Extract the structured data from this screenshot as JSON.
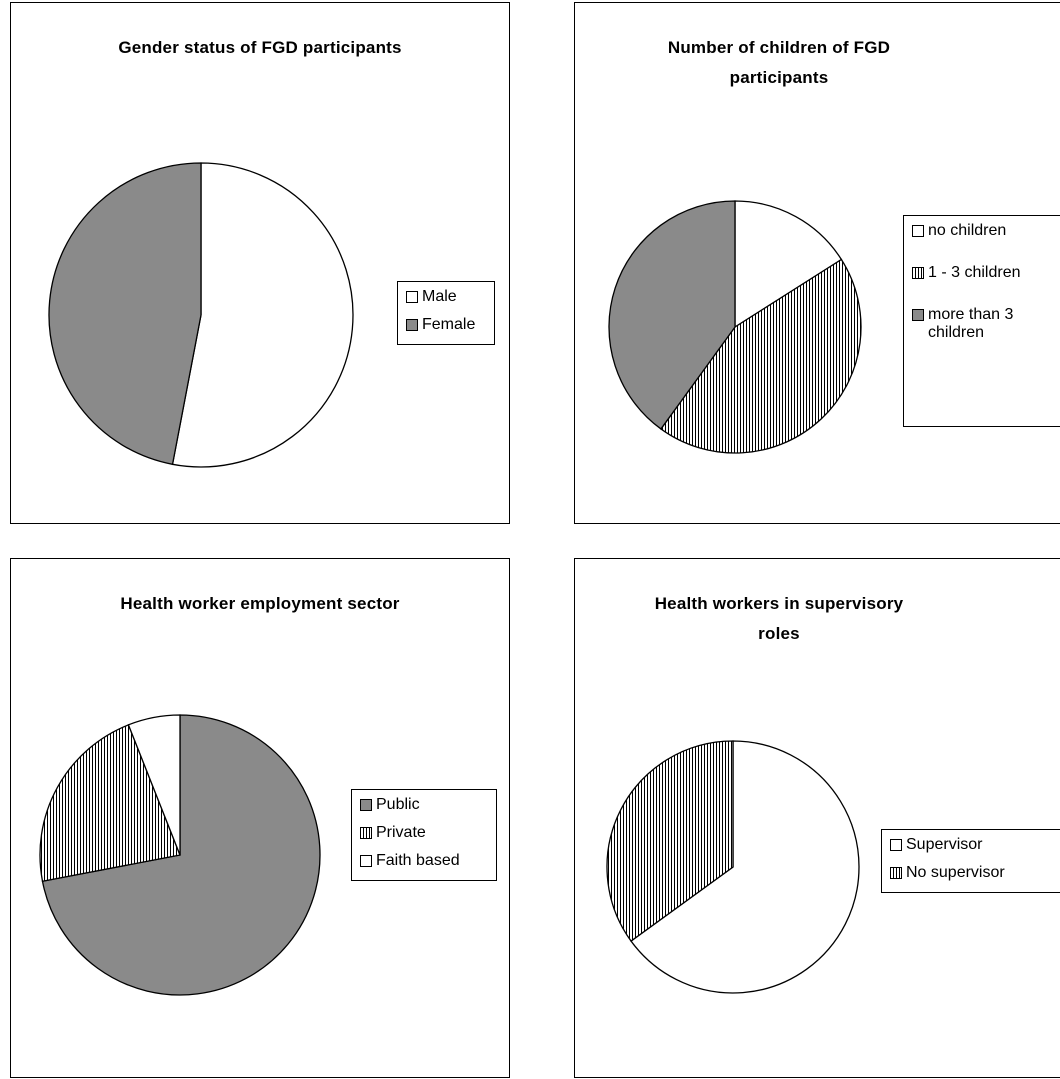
{
  "chart_data": [
    {
      "type": "pie",
      "title": "Gender status of FGD participants",
      "categories": [
        "Male",
        "Female"
      ],
      "values": [
        53,
        47
      ],
      "fills": [
        "white",
        "dark"
      ]
    },
    {
      "type": "pie",
      "title": "Number of children of FGD participants",
      "title_lines": [
        "Number of children of FGD",
        "participants"
      ],
      "categories": [
        "no children",
        "1 - 3 children",
        "more than 3 children"
      ],
      "values": [
        16,
        44,
        40
      ],
      "fills": [
        "white",
        "striped",
        "dark"
      ]
    },
    {
      "type": "pie",
      "title": "Health worker employment sector",
      "categories": [
        "Public",
        "Private",
        "Faith based"
      ],
      "values": [
        72,
        22,
        6
      ],
      "fills": [
        "dark",
        "striped",
        "white"
      ],
      "clockwise_from": "Public"
    },
    {
      "type": "pie",
      "title": "Health workers in supervisory roles",
      "title_lines": [
        "Health workers in supervisory",
        "roles"
      ],
      "categories": [
        "Supervisor",
        "No supervisor"
      ],
      "values": [
        65,
        35
      ],
      "fills": [
        "white",
        "striped"
      ]
    }
  ],
  "colors": {
    "dark": "#8a8a8a",
    "white": "#ffffff",
    "stroke": "#000000"
  }
}
